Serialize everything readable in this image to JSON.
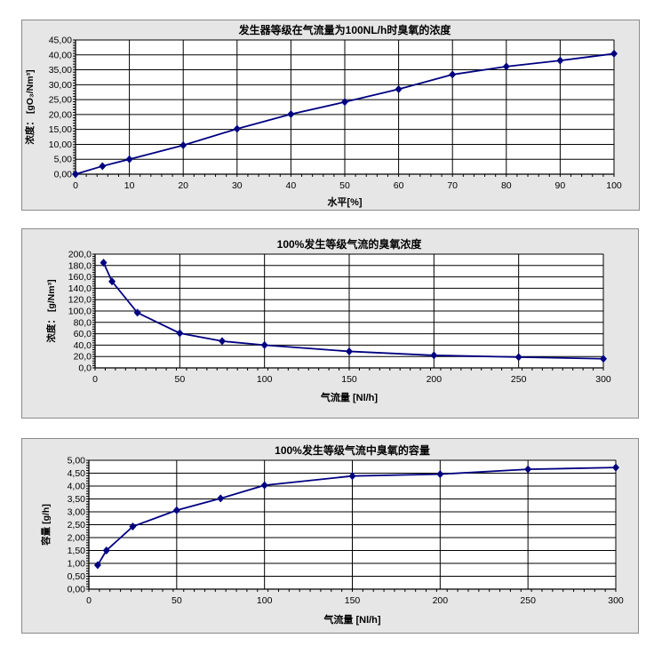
{
  "chart_data": [
    {
      "type": "line",
      "title": "发生器等级在气流量为100NL/h时臭氧的浓度",
      "xlabel": "水平[%]",
      "ylabel": "浓度： [gO₃/Nm³]",
      "x": [
        0,
        5,
        10,
        20,
        30,
        40,
        50,
        60,
        70,
        80,
        90,
        100
      ],
      "series": [
        {
          "name": "浓度",
          "values": [
            0,
            2.7,
            5.0,
            9.7,
            15.2,
            20.1,
            24.2,
            28.5,
            33.4,
            36.1,
            38.1,
            40.4
          ]
        }
      ],
      "xlim": [
        0,
        100
      ],
      "ylim": [
        0,
        45
      ],
      "xticks": [
        0,
        10,
        20,
        30,
        40,
        50,
        60,
        70,
        80,
        90,
        100
      ],
      "yticks": [
        0,
        5,
        10,
        15,
        20,
        25,
        30,
        35,
        40,
        45
      ],
      "ytick_labels": [
        "0,00",
        "5,00",
        "10,00",
        "15,00",
        "20,00",
        "25,00",
        "30,00",
        "35,00",
        "40,00",
        "45,00"
      ],
      "grid": true,
      "color": "#000080"
    },
    {
      "type": "line",
      "title": "100%发生等级气流的臭氧浓度",
      "xlabel": "气流量 [Nl/h]",
      "ylabel": "浓度： [g/Nm³]",
      "x": [
        5,
        10,
        25,
        50,
        75,
        100,
        150,
        200,
        250,
        300
      ],
      "series": [
        {
          "name": "浓度",
          "values": [
            185,
            152,
            97,
            61,
            47,
            40,
            29,
            22,
            19,
            16
          ]
        }
      ],
      "xlim": [
        0,
        300
      ],
      "ylim": [
        0,
        200
      ],
      "xticks": [
        0,
        50,
        100,
        150,
        200,
        250,
        300
      ],
      "yticks": [
        0,
        20,
        40,
        60,
        80,
        100,
        120,
        140,
        160,
        180,
        200
      ],
      "ytick_labels": [
        "0,0",
        "20,0",
        "40,0",
        "60,0",
        "80,0",
        "100,0",
        "120,0",
        "140,0",
        "160,0",
        "180,0",
        "200,0"
      ],
      "grid": true,
      "color": "#000080"
    },
    {
      "type": "line",
      "title": "100%发生等级气流中臭氧的容量",
      "xlabel": "气流量 [Nl/h]",
      "ylabel": "容量 [g/h]",
      "x": [
        5,
        10,
        25,
        50,
        75,
        100,
        150,
        200,
        250,
        300
      ],
      "series": [
        {
          "name": "容量",
          "values": [
            0.93,
            1.5,
            2.43,
            3.06,
            3.52,
            4.03,
            4.39,
            4.46,
            4.65,
            4.72
          ]
        }
      ],
      "xlim": [
        0,
        300
      ],
      "ylim": [
        0,
        5
      ],
      "xticks": [
        0,
        50,
        100,
        150,
        200,
        250,
        300
      ],
      "yticks": [
        0,
        0.5,
        1,
        1.5,
        2,
        2.5,
        3,
        3.5,
        4,
        4.5,
        5
      ],
      "ytick_labels": [
        "0,00",
        "0,50",
        "1,00",
        "1,50",
        "2,00",
        "2,50",
        "3,00",
        "3,50",
        "4,00",
        "4,50",
        "5,00"
      ],
      "grid": true,
      "color": "#000080"
    }
  ]
}
